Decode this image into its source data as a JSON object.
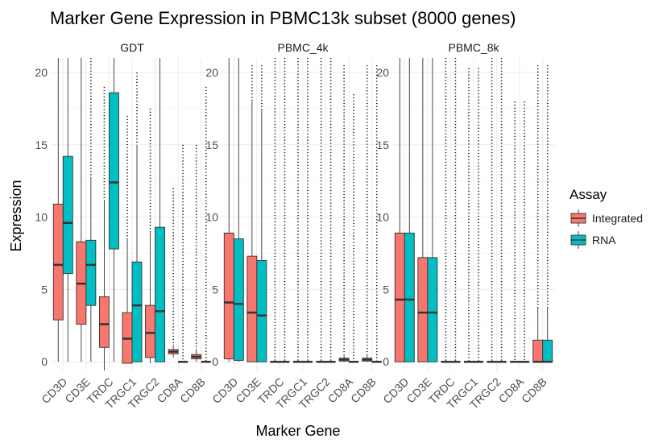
{
  "chart_data": {
    "type": "box",
    "title": "Marker Gene Expression in PBMC13k subset (8000 genes)",
    "xlabel": "Marker Gene",
    "ylabel": "Expression",
    "ylim": [
      -0.6,
      21
    ],
    "yticks": [
      0,
      5,
      10,
      15,
      20
    ],
    "categories": [
      "CD3D",
      "CD3E",
      "TRDC",
      "TRGC1",
      "TRGC2",
      "CD8A",
      "CD8B"
    ],
    "legend": {
      "title": "Assay",
      "position": "right",
      "items": [
        {
          "name": "Integrated",
          "color": "#F8766D"
        },
        {
          "name": "RNA",
          "color": "#00BFC4"
        }
      ]
    },
    "facets": [
      {
        "name": "GDT",
        "series": [
          {
            "name": "Integrated",
            "boxes": [
              {
                "q1": 2.9,
                "median": 6.7,
                "q3": 10.9,
                "whisker_low": 0,
                "whisker_high": 21,
                "outlier_max": null
              },
              {
                "q1": 2.6,
                "median": 5.4,
                "q3": 8.3,
                "whisker_low": 0,
                "whisker_high": 21,
                "outlier_max": null
              },
              {
                "q1": 1.0,
                "median": 2.6,
                "q3": 4.5,
                "whisker_low": -0.6,
                "whisker_high": 11.2,
                "outlier_max": 19.0
              },
              {
                "q1": -0.1,
                "median": 1.6,
                "q3": 3.4,
                "whisker_low": -0.1,
                "whisker_high": 8.5,
                "outlier_max": 17.0
              },
              {
                "q1": 0.3,
                "median": 2.0,
                "q3": 3.9,
                "whisker_low": -0.1,
                "whisker_high": 9.0,
                "outlier_max": 17.5
              },
              {
                "q1": 0.55,
                "median": 0.7,
                "q3": 0.85,
                "whisker_low": 0.3,
                "whisker_high": 1.2,
                "outlier_max": 12.0
              },
              {
                "q1": 0.2,
                "median": 0.35,
                "q3": 0.5,
                "whisker_low": 0.0,
                "whisker_high": 0.9,
                "outlier_max": 15.0
              }
            ]
          },
          {
            "name": "RNA",
            "boxes": [
              {
                "q1": 6.1,
                "median": 9.6,
                "q3": 14.2,
                "whisker_low": 0,
                "whisker_high": 21,
                "outlier_max": null
              },
              {
                "q1": 3.9,
                "median": 6.7,
                "q3": 8.4,
                "whisker_low": 0,
                "whisker_high": 12.7,
                "outlier_max": 21.0
              },
              {
                "q1": 7.8,
                "median": 12.4,
                "q3": 18.6,
                "whisker_low": 0,
                "whisker_high": 21,
                "outlier_max": null
              },
              {
                "q1": 0,
                "median": 3.9,
                "q3": 6.9,
                "whisker_low": 0,
                "whisker_high": 15.0,
                "outlier_max": 20.0
              },
              {
                "q1": 0,
                "median": 3.5,
                "q3": 9.3,
                "whisker_low": 0,
                "whisker_high": 21,
                "outlier_max": null
              },
              {
                "q1": 0,
                "median": 0,
                "q3": 0,
                "whisker_low": 0,
                "whisker_high": 0,
                "outlier_max": 15.0
              },
              {
                "q1": 0,
                "median": 0,
                "q3": 0,
                "whisker_low": 0,
                "whisker_high": 0,
                "outlier_max": 19.0
              }
            ]
          }
        ]
      },
      {
        "name": "PBMC_4k",
        "series": [
          {
            "name": "Integrated",
            "boxes": [
              {
                "q1": 0.2,
                "median": 4.1,
                "q3": 8.9,
                "whisker_low": 0,
                "whisker_high": 21,
                "outlier_max": null
              },
              {
                "q1": 0.0,
                "median": 3.4,
                "q3": 7.3,
                "whisker_low": 0,
                "whisker_high": 18.0,
                "outlier_max": 20.5
              },
              {
                "q1": 0,
                "median": 0,
                "q3": 0,
                "whisker_low": 0,
                "whisker_high": 0,
                "outlier_max": 21.0
              },
              {
                "q1": 0,
                "median": 0,
                "q3": 0,
                "whisker_low": 0,
                "whisker_high": 0,
                "outlier_max": 21.0
              },
              {
                "q1": 0,
                "median": 0,
                "q3": 0,
                "whisker_low": 0,
                "whisker_high": 0,
                "outlier_max": 21.0
              },
              {
                "q1": 0.05,
                "median": 0.15,
                "q3": 0.25,
                "whisker_low": 0,
                "whisker_high": 0.5,
                "outlier_max": 20.5
              },
              {
                "q1": 0.05,
                "median": 0.15,
                "q3": 0.25,
                "whisker_low": 0,
                "whisker_high": 0.5,
                "outlier_max": 20.5
              }
            ]
          },
          {
            "name": "RNA",
            "boxes": [
              {
                "q1": 0.1,
                "median": 4.0,
                "q3": 8.5,
                "whisker_low": 0,
                "whisker_high": 21,
                "outlier_max": null
              },
              {
                "q1": 0.0,
                "median": 3.2,
                "q3": 7.0,
                "whisker_low": 0,
                "whisker_high": 17.5,
                "outlier_max": 20.5
              },
              {
                "q1": 0,
                "median": 0,
                "q3": 0,
                "whisker_low": 0,
                "whisker_high": 0,
                "outlier_max": 21.0
              },
              {
                "q1": 0,
                "median": 0,
                "q3": 0,
                "whisker_low": 0,
                "whisker_high": 0,
                "outlier_max": 21.0
              },
              {
                "q1": 0,
                "median": 0,
                "q3": 0,
                "whisker_low": 0,
                "whisker_high": 0,
                "outlier_max": 21.0
              },
              {
                "q1": 0,
                "median": 0,
                "q3": 0,
                "whisker_low": 0,
                "whisker_high": 0,
                "outlier_max": 18.5
              },
              {
                "q1": 0,
                "median": 0,
                "q3": 0,
                "whisker_low": 0,
                "whisker_high": 0,
                "outlier_max": 20.5
              }
            ]
          }
        ]
      },
      {
        "name": "PBMC_8k",
        "series": [
          {
            "name": "Integrated",
            "boxes": [
              {
                "q1": 0,
                "median": 4.3,
                "q3": 8.9,
                "whisker_low": 0,
                "whisker_high": 21,
                "outlier_max": null
              },
              {
                "q1": 0,
                "median": 3.4,
                "q3": 7.2,
                "whisker_low": 0,
                "whisker_high": 21,
                "outlier_max": null
              },
              {
                "q1": 0,
                "median": 0,
                "q3": 0,
                "whisker_low": 0,
                "whisker_high": 0,
                "outlier_max": 21.0
              },
              {
                "q1": 0,
                "median": 0,
                "q3": 0,
                "whisker_low": 0,
                "whisker_high": 0,
                "outlier_max": 20.3
              },
              {
                "q1": 0,
                "median": 0,
                "q3": 0,
                "whisker_low": 0,
                "whisker_high": 0,
                "outlier_max": 21.0
              },
              {
                "q1": 0,
                "median": 0,
                "q3": 0,
                "whisker_low": 0,
                "whisker_high": 0,
                "outlier_max": 18.0
              },
              {
                "q1": 0,
                "median": 0,
                "q3": 1.5,
                "whisker_low": 0,
                "whisker_high": 3.7,
                "outlier_max": 20.5
              }
            ]
          },
          {
            "name": "RNA",
            "boxes": [
              {
                "q1": 0,
                "median": 4.3,
                "q3": 8.9,
                "whisker_low": 0,
                "whisker_high": 21,
                "outlier_max": null
              },
              {
                "q1": 0,
                "median": 3.4,
                "q3": 7.2,
                "whisker_low": 0,
                "whisker_high": 21,
                "outlier_max": null
              },
              {
                "q1": 0,
                "median": 0,
                "q3": 0,
                "whisker_low": 0,
                "whisker_high": 0,
                "outlier_max": 21.0
              },
              {
                "q1": 0,
                "median": 0,
                "q3": 0,
                "whisker_low": 0,
                "whisker_high": 0,
                "outlier_max": 20.3
              },
              {
                "q1": 0,
                "median": 0,
                "q3": 0,
                "whisker_low": 0,
                "whisker_high": 0,
                "outlier_max": 21.0
              },
              {
                "q1": 0,
                "median": 0,
                "q3": 0,
                "whisker_low": 0,
                "whisker_high": 0,
                "outlier_max": 18.0
              },
              {
                "q1": 0,
                "median": 0,
                "q3": 1.5,
                "whisker_low": 0,
                "whisker_high": 3.7,
                "outlier_max": 20.5
              }
            ]
          }
        ]
      }
    ]
  }
}
